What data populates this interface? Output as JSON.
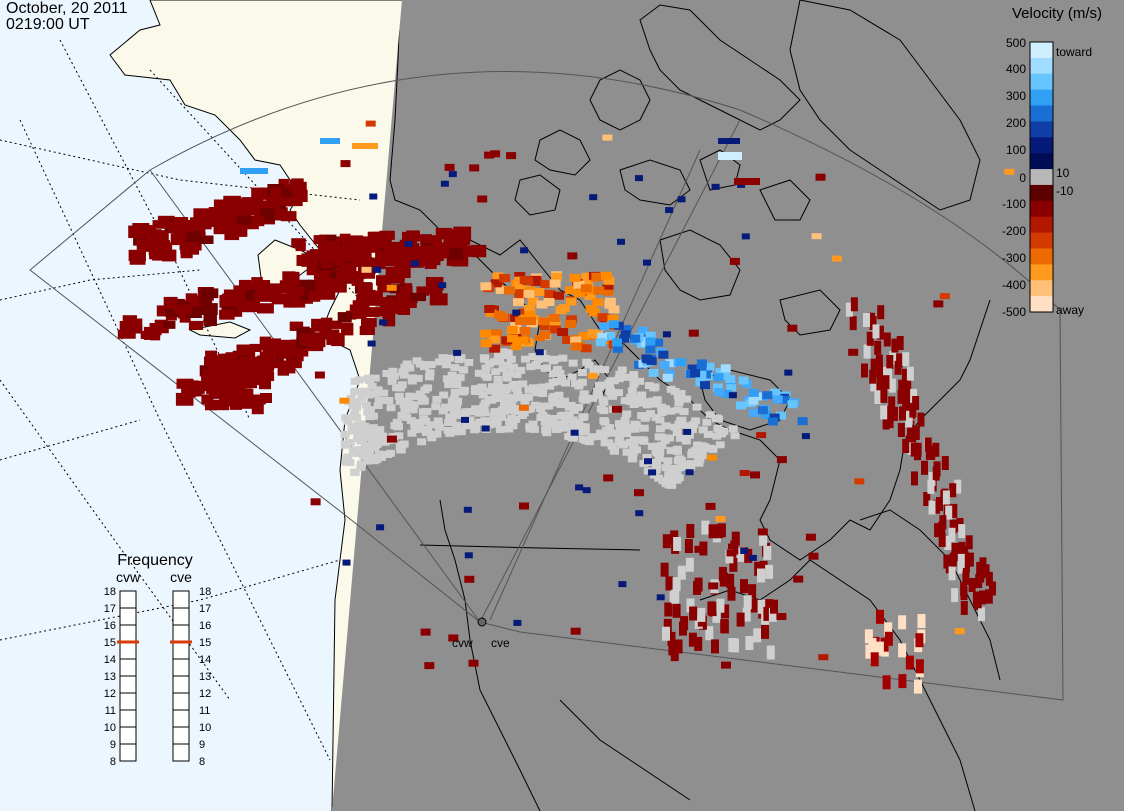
{
  "header": {
    "date": "October, 20 2011",
    "time": "0219:00 UT"
  },
  "velocity_scale": {
    "title": "Velocity (m/s)",
    "ticks": [
      "500",
      "400",
      "300",
      "200",
      "100",
      "10",
      "0",
      "-10",
      "-100",
      "-200",
      "-300",
      "-400",
      "-500"
    ],
    "toward_label": "toward",
    "away_label": "away",
    "colors_toward": [
      "#cfefff",
      "#9fdcff",
      "#66c4ff",
      "#2fa0f4",
      "#1a6fd4",
      "#0f3fa6",
      "#061a7a",
      "#000d55"
    ],
    "color_zero": "#b8b8b8",
    "colors_away": [
      "#5c0000",
      "#8a0000",
      "#b21800",
      "#d23a00",
      "#ec6a00",
      "#ff9a1f",
      "#ffc07a",
      "#ffe0c4"
    ]
  },
  "frequency": {
    "title": "Frequency",
    "radars": [
      {
        "name": "cvw",
        "value": 15
      },
      {
        "name": "cve",
        "value": 15
      }
    ],
    "ticks": [
      "18",
      "17",
      "16",
      "15",
      "14",
      "13",
      "12",
      "11",
      "10",
      "9",
      "8"
    ],
    "min": 8,
    "max": 18,
    "marker_color": "#d83a0a"
  },
  "radar_sites": [
    {
      "label": "cvw"
    },
    {
      "label": "cve"
    }
  ],
  "map_colors": {
    "ocean": "#ecf6fe",
    "land_daylight": "#fbf9ea",
    "night_shade": "#8f8f8f",
    "ground_scatter": "#cfcfcf"
  }
}
